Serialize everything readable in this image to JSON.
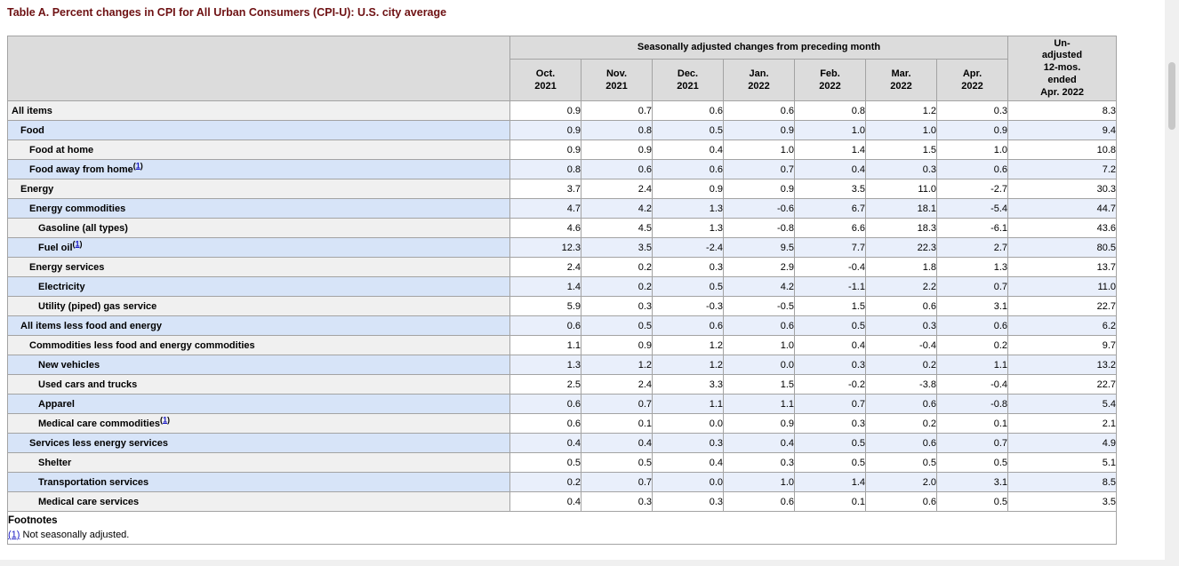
{
  "page_title": "Table A. Percent changes in CPI for All Urban Consumers (CPI-U): U.S. city average",
  "table": {
    "group_header": "Seasonally adjusted changes from preceding month",
    "month_columns": [
      {
        "month": "Oct.",
        "year": "2021"
      },
      {
        "month": "Nov.",
        "year": "2021"
      },
      {
        "month": "Dec.",
        "year": "2021"
      },
      {
        "month": "Jan.",
        "year": "2022"
      },
      {
        "month": "Feb.",
        "year": "2022"
      },
      {
        "month": "Mar.",
        "year": "2022"
      },
      {
        "month": "Apr.",
        "year": "2022"
      }
    ],
    "unadjusted_header": "Un-\nadjusted\n12-mos.\nended\nApr. 2022",
    "rows": [
      {
        "label": "All items",
        "indent": 0,
        "footnote_ref": "",
        "values": [
          "0.9",
          "0.7",
          "0.6",
          "0.6",
          "0.8",
          "1.2",
          "0.3",
          "8.3"
        ]
      },
      {
        "label": "Food",
        "indent": 1,
        "footnote_ref": "",
        "values": [
          "0.9",
          "0.8",
          "0.5",
          "0.9",
          "1.0",
          "1.0",
          "0.9",
          "9.4"
        ]
      },
      {
        "label": "Food at home",
        "indent": 2,
        "footnote_ref": "",
        "values": [
          "0.9",
          "0.9",
          "0.4",
          "1.0",
          "1.4",
          "1.5",
          "1.0",
          "10.8"
        ]
      },
      {
        "label": "Food away from home",
        "indent": 2,
        "footnote_ref": "1",
        "values": [
          "0.8",
          "0.6",
          "0.6",
          "0.7",
          "0.4",
          "0.3",
          "0.6",
          "7.2"
        ]
      },
      {
        "label": "Energy",
        "indent": 1,
        "footnote_ref": "",
        "values": [
          "3.7",
          "2.4",
          "0.9",
          "0.9",
          "3.5",
          "11.0",
          "-2.7",
          "30.3"
        ]
      },
      {
        "label": "Energy commodities",
        "indent": 2,
        "footnote_ref": "",
        "values": [
          "4.7",
          "4.2",
          "1.3",
          "-0.6",
          "6.7",
          "18.1",
          "-5.4",
          "44.7"
        ]
      },
      {
        "label": "Gasoline (all types)",
        "indent": 3,
        "footnote_ref": "",
        "values": [
          "4.6",
          "4.5",
          "1.3",
          "-0.8",
          "6.6",
          "18.3",
          "-6.1",
          "43.6"
        ]
      },
      {
        "label": "Fuel oil",
        "indent": 3,
        "footnote_ref": "1",
        "values": [
          "12.3",
          "3.5",
          "-2.4",
          "9.5",
          "7.7",
          "22.3",
          "2.7",
          "80.5"
        ]
      },
      {
        "label": "Energy services",
        "indent": 2,
        "footnote_ref": "",
        "values": [
          "2.4",
          "0.2",
          "0.3",
          "2.9",
          "-0.4",
          "1.8",
          "1.3",
          "13.7"
        ]
      },
      {
        "label": "Electricity",
        "indent": 3,
        "footnote_ref": "",
        "values": [
          "1.4",
          "0.2",
          "0.5",
          "4.2",
          "-1.1",
          "2.2",
          "0.7",
          "11.0"
        ]
      },
      {
        "label": "Utility (piped) gas service",
        "indent": 3,
        "footnote_ref": "",
        "values": [
          "5.9",
          "0.3",
          "-0.3",
          "-0.5",
          "1.5",
          "0.6",
          "3.1",
          "22.7"
        ]
      },
      {
        "label": "All items less food and energy",
        "indent": 1,
        "footnote_ref": "",
        "values": [
          "0.6",
          "0.5",
          "0.6",
          "0.6",
          "0.5",
          "0.3",
          "0.6",
          "6.2"
        ]
      },
      {
        "label": "Commodities less food and energy commodities",
        "indent": 2,
        "footnote_ref": "",
        "values": [
          "1.1",
          "0.9",
          "1.2",
          "1.0",
          "0.4",
          "-0.4",
          "0.2",
          "9.7"
        ]
      },
      {
        "label": "New vehicles",
        "indent": 3,
        "footnote_ref": "",
        "values": [
          "1.3",
          "1.2",
          "1.2",
          "0.0",
          "0.3",
          "0.2",
          "1.1",
          "13.2"
        ]
      },
      {
        "label": "Used cars and trucks",
        "indent": 3,
        "footnote_ref": "",
        "values": [
          "2.5",
          "2.4",
          "3.3",
          "1.5",
          "-0.2",
          "-3.8",
          "-0.4",
          "22.7"
        ]
      },
      {
        "label": "Apparel",
        "indent": 3,
        "footnote_ref": "",
        "values": [
          "0.6",
          "0.7",
          "1.1",
          "1.1",
          "0.7",
          "0.6",
          "-0.8",
          "5.4"
        ]
      },
      {
        "label": "Medical care commodities",
        "indent": 3,
        "footnote_ref": "1",
        "values": [
          "0.6",
          "0.1",
          "0.0",
          "0.9",
          "0.3",
          "0.2",
          "0.1",
          "2.1"
        ]
      },
      {
        "label": "Services less energy services",
        "indent": 2,
        "footnote_ref": "",
        "values": [
          "0.4",
          "0.4",
          "0.3",
          "0.4",
          "0.5",
          "0.6",
          "0.7",
          "4.9"
        ]
      },
      {
        "label": "Shelter",
        "indent": 3,
        "footnote_ref": "",
        "values": [
          "0.5",
          "0.5",
          "0.4",
          "0.3",
          "0.5",
          "0.5",
          "0.5",
          "5.1"
        ]
      },
      {
        "label": "Transportation services",
        "indent": 3,
        "footnote_ref": "",
        "values": [
          "0.2",
          "0.7",
          "0.0",
          "1.0",
          "1.4",
          "2.0",
          "3.1",
          "8.5"
        ]
      },
      {
        "label": "Medical care services",
        "indent": 3,
        "footnote_ref": "",
        "values": [
          "0.4",
          "0.3",
          "0.3",
          "0.6",
          "0.1",
          "0.6",
          "0.5",
          "3.5"
        ]
      }
    ],
    "footnotes": {
      "heading": "Footnotes",
      "items": [
        {
          "ref": "(1)",
          "text": "Not seasonally adjusted."
        }
      ]
    }
  },
  "colors": {
    "title_color": "#6e1113",
    "header_bg": "#dcdcdc",
    "border_color": "#a3a3a3",
    "label_plain": "#f0f0f0",
    "data_plain": "#ffffff",
    "label_blue": "#d7e4f8",
    "data_blue": "#e9effb",
    "link_color": "#1a1ac4",
    "scroll_track": "#f0f0f0",
    "scroll_thumb": "#c8c8c8"
  }
}
